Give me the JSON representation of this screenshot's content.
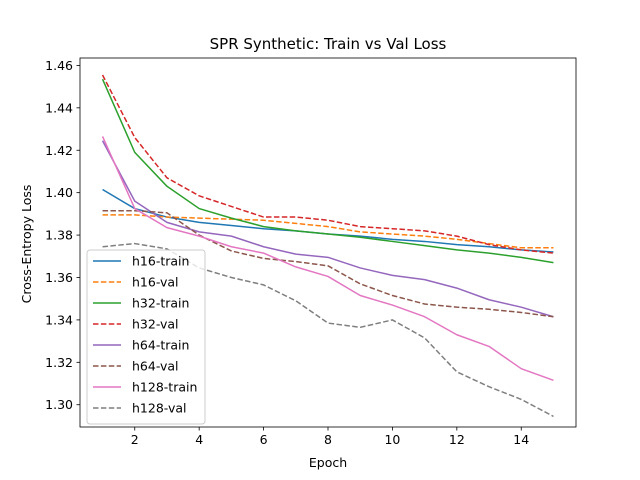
{
  "chart_data": {
    "type": "line",
    "title": "SPR Synthetic: Train vs Val Loss",
    "xlabel": "Epoch",
    "ylabel": "Cross-Entropy Loss",
    "xlim": [
      0.3,
      15.7
    ],
    "ylim": [
      1.2895,
      1.4635
    ],
    "xticks": [
      2,
      4,
      6,
      8,
      10,
      12,
      14
    ],
    "yticks": [
      1.3,
      1.32,
      1.34,
      1.36,
      1.38,
      1.4,
      1.42,
      1.44,
      1.46
    ],
    "ytick_labels": [
      "1.30",
      "1.32",
      "1.34",
      "1.36",
      "1.38",
      "1.40",
      "1.42",
      "1.44",
      "1.46"
    ],
    "grid": false,
    "legend_position": "lower-left",
    "x": [
      1,
      2,
      3,
      4,
      5,
      6,
      7,
      8,
      9,
      10,
      11,
      12,
      13,
      14,
      15
    ],
    "series": [
      {
        "name": "h16-train",
        "color": "#1f77b4",
        "style": "solid",
        "values": [
          1.4015,
          1.3925,
          1.3885,
          1.386,
          1.3845,
          1.383,
          1.382,
          1.3805,
          1.3795,
          1.378,
          1.377,
          1.3755,
          1.3745,
          1.373,
          1.372
        ]
      },
      {
        "name": "h16-val",
        "color": "#ff7f0e",
        "style": "dashed",
        "values": [
          1.3895,
          1.3895,
          1.3885,
          1.388,
          1.3875,
          1.387,
          1.3855,
          1.384,
          1.3815,
          1.3805,
          1.3795,
          1.378,
          1.376,
          1.374,
          1.374
        ]
      },
      {
        "name": "h32-train",
        "color": "#2ca02c",
        "style": "solid",
        "values": [
          1.4535,
          1.419,
          1.403,
          1.3925,
          1.388,
          1.384,
          1.382,
          1.3805,
          1.379,
          1.377,
          1.375,
          1.373,
          1.3715,
          1.3695,
          1.367
        ]
      },
      {
        "name": "h32-val",
        "color": "#d62728",
        "style": "dashed",
        "values": [
          1.4555,
          1.426,
          1.407,
          1.3985,
          1.3935,
          1.3885,
          1.3885,
          1.387,
          1.384,
          1.383,
          1.382,
          1.3795,
          1.3755,
          1.373,
          1.3715
        ]
      },
      {
        "name": "h64-train",
        "color": "#9467bd",
        "style": "solid",
        "values": [
          1.4245,
          1.396,
          1.386,
          1.3815,
          1.3795,
          1.3745,
          1.371,
          1.3695,
          1.3645,
          1.361,
          1.359,
          1.355,
          1.3495,
          1.346,
          1.3415
        ]
      },
      {
        "name": "h64-val",
        "color": "#8c564b",
        "style": "dashed",
        "values": [
          1.3915,
          1.3915,
          1.3905,
          1.38,
          1.3725,
          1.369,
          1.3675,
          1.3655,
          1.357,
          1.3515,
          1.3475,
          1.346,
          1.345,
          1.3435,
          1.3415
        ]
      },
      {
        "name": "h128-train",
        "color": "#e377c2",
        "style": "solid",
        "values": [
          1.4265,
          1.3925,
          1.3835,
          1.3795,
          1.3745,
          1.3715,
          1.365,
          1.3605,
          1.3515,
          1.347,
          1.3415,
          1.333,
          1.3275,
          1.317,
          1.3115
        ]
      },
      {
        "name": "h128-val",
        "color": "#7f7f7f",
        "style": "dashed",
        "values": [
          1.3745,
          1.376,
          1.3735,
          1.3645,
          1.36,
          1.3565,
          1.349,
          1.3385,
          1.3365,
          1.34,
          1.3315,
          1.3155,
          1.3085,
          1.3025,
          1.2945
        ]
      }
    ]
  }
}
